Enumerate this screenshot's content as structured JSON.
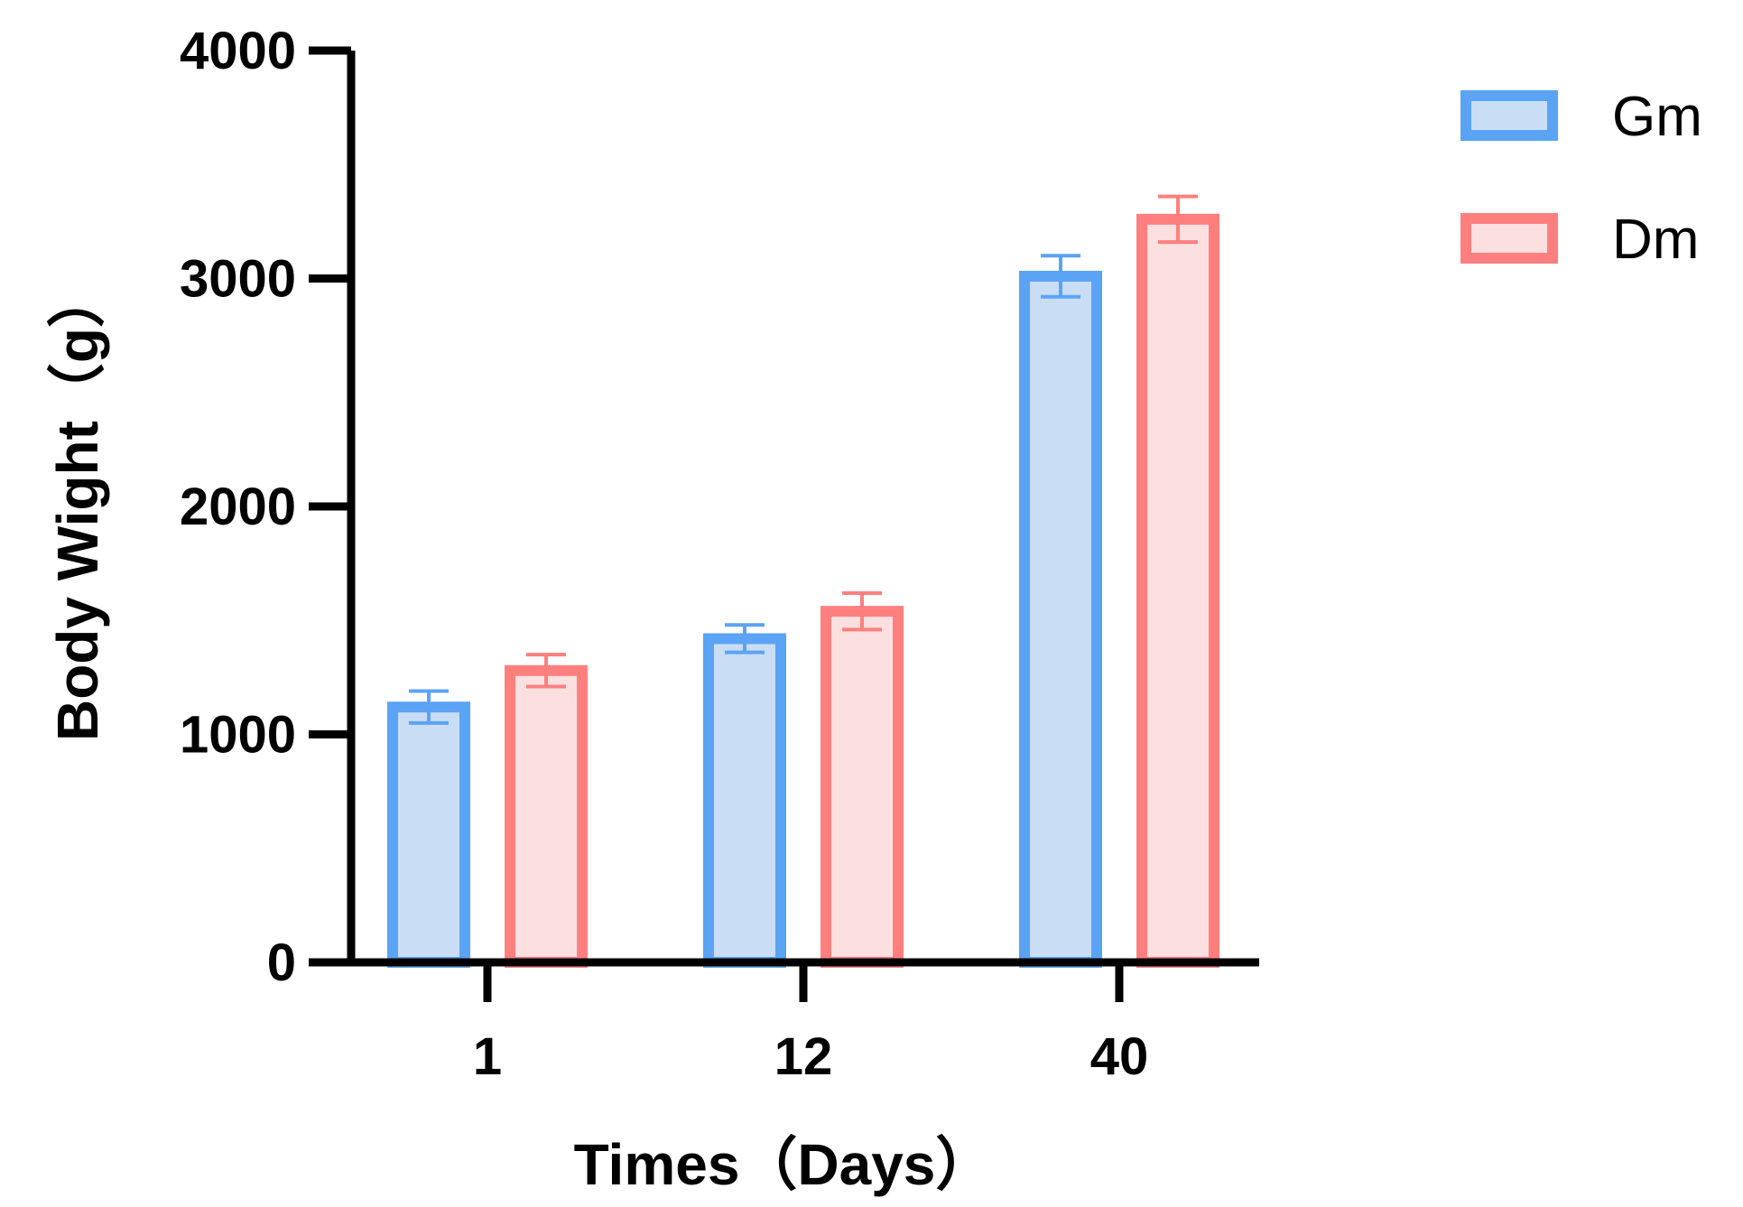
{
  "chart_data": {
    "type": "bar",
    "xlabel": "Times（Days）",
    "ylabel": "Body Wight（g）",
    "categories": [
      "1",
      "12",
      "40"
    ],
    "ylim": [
      0,
      4000
    ],
    "yticks": [
      "0",
      "1000",
      "2000",
      "3000",
      "4000"
    ],
    "series": [
      {
        "name": "Gm",
        "values": [
          1120,
          1420,
          3010
        ],
        "errors": [
          70,
          60,
          90
        ],
        "stroke": "#5BA3F5",
        "fill": "#C9DDF5"
      },
      {
        "name": "Dm",
        "values": [
          1280,
          1540,
          3260
        ],
        "errors": [
          70,
          80,
          100
        ],
        "stroke": "#FF7F7F",
        "fill": "#FCE0E0"
      }
    ],
    "legend": "top-right",
    "grid": false
  }
}
